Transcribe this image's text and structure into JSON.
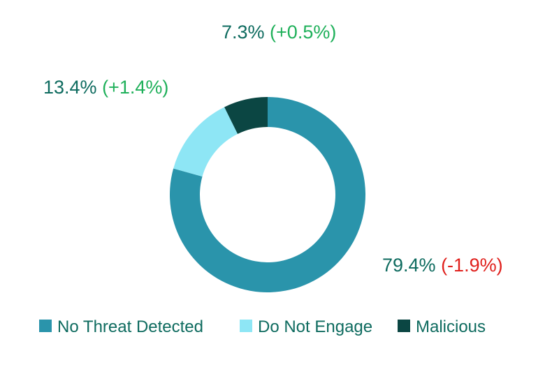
{
  "chart_data": {
    "type": "pie",
    "variant": "donut",
    "title": "",
    "slices": [
      {
        "name": "No Threat Detected",
        "value": 79.4,
        "label": "79.4%",
        "change": "(-1.9%)",
        "change_direction": "down",
        "color": "#2a94ab"
      },
      {
        "name": "Do Not Engage",
        "value": 13.4,
        "label": "13.4%",
        "change": "(+1.4%)",
        "change_direction": "up",
        "color": "#8ee6f5"
      },
      {
        "name": "Malicious",
        "value": 7.3,
        "label": "7.3%",
        "change": "(+0.5%)",
        "change_direction": "up",
        "color": "#0b4643"
      }
    ],
    "legend_position": "bottom",
    "colors": {
      "label": "#0e6b5f",
      "change_up": "#1fb05a",
      "change_down": "#e0201c"
    }
  }
}
